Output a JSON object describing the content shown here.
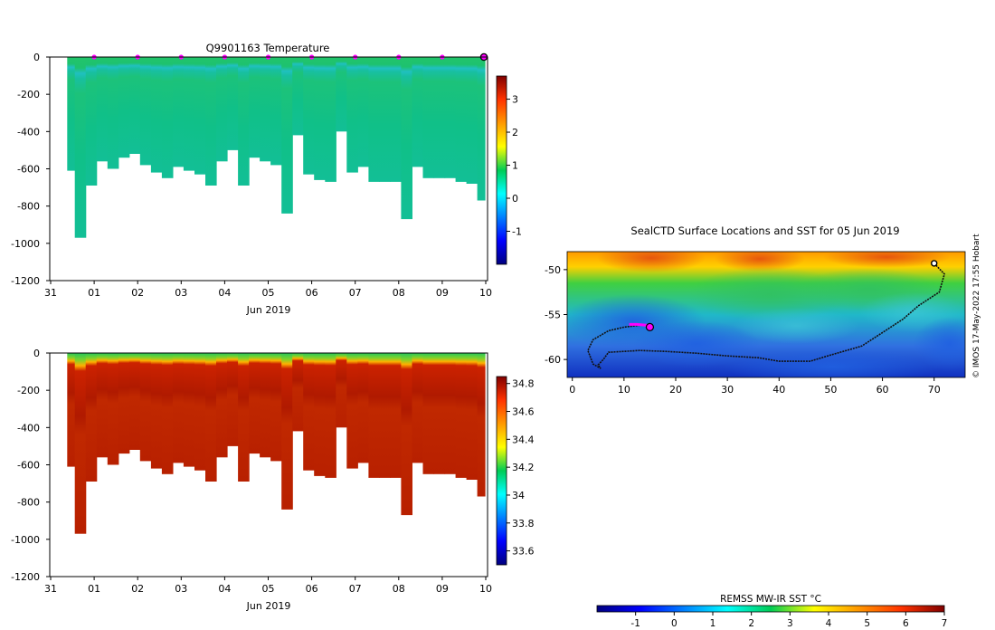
{
  "chart_data": [
    {
      "type": "heatmap",
      "id": "temperature",
      "title": "Q9901163  Temperature",
      "xlabel": "Jun 2019",
      "ylabel": "",
      "x_ticks": [
        "31",
        "01",
        "02",
        "03",
        "04",
        "05",
        "06",
        "07",
        "08",
        "09",
        "10"
      ],
      "xlim": [
        0,
        10
      ],
      "y_ticks": [
        0,
        -200,
        -400,
        -600,
        -800,
        -1000,
        -1200
      ],
      "ylim": [
        -1200,
        0
      ],
      "profile_days": [
        0.43,
        0.68,
        0.93,
        1.18,
        1.43,
        1.68,
        1.93,
        2.18,
        2.43,
        2.68,
        2.93,
        3.18,
        3.43,
        3.68,
        3.93,
        4.18,
        4.43,
        4.68,
        4.93,
        5.18,
        5.43,
        5.68,
        5.93,
        6.18,
        6.43,
        6.68,
        6.93,
        7.18,
        7.43,
        7.68,
        7.93,
        8.18,
        8.43,
        8.68,
        8.93,
        9.18,
        9.43,
        9.68,
        9.93
      ],
      "profile_max_depth": [
        610,
        970,
        690,
        560,
        600,
        540,
        520,
        580,
        620,
        650,
        590,
        610,
        630,
        690,
        560,
        500,
        690,
        540,
        560,
        580,
        840,
        420,
        630,
        660,
        670,
        400,
        620,
        590,
        670,
        670,
        670,
        870,
        590,
        650,
        650,
        650,
        670,
        680,
        770
      ],
      "surface_marker_days": [
        1,
        2,
        3,
        4,
        5,
        6,
        7,
        8,
        9
      ],
      "current_marker_day": 10,
      "colorbar": {
        "ticks": [
          3,
          2,
          1,
          0,
          -1
        ],
        "range": [
          -2,
          3.7
        ],
        "palette": "jet"
      }
    },
    {
      "type": "heatmap",
      "id": "salinity",
      "title": "",
      "xlabel": "Jun 2019",
      "x_ticks": [
        "31",
        "01",
        "02",
        "03",
        "04",
        "05",
        "06",
        "07",
        "08",
        "09",
        "10"
      ],
      "xlim": [
        0,
        10
      ],
      "y_ticks": [
        0,
        -200,
        -400,
        -600,
        -800,
        -1000,
        -1200
      ],
      "ylim": [
        -1200,
        0
      ],
      "colorbar": {
        "ticks": [
          34.8,
          34.6,
          34.4,
          34.2,
          34,
          33.8,
          33.6
        ],
        "range": [
          33.5,
          34.85
        ],
        "palette": "jet"
      }
    },
    {
      "type": "heatmap",
      "id": "sst-map",
      "title": "SealCTD Surface Locations and SST for 05 Jun 2019",
      "x_ticks": [
        0,
        10,
        20,
        30,
        40,
        50,
        60,
        70
      ],
      "xlim": [
        -1,
        76
      ],
      "y_ticks": [
        -50,
        -55,
        -60
      ],
      "ylim": [
        -62,
        -48
      ],
      "credit": "© IMOS 17-May-2022 17:55 Hobart",
      "colorbar": {
        "label": "REMSS MW-IR SST °C",
        "ticks": [
          -1,
          0,
          1,
          2,
          3,
          4,
          5,
          6,
          7
        ],
        "range": [
          -2,
          7
        ],
        "palette": "jet"
      },
      "track": [
        [
          70,
          -49.3
        ],
        [
          72,
          -50.5
        ],
        [
          71,
          -52.5
        ],
        [
          67,
          -54
        ],
        [
          64,
          -55.5
        ],
        [
          60,
          -57
        ],
        [
          56,
          -58.5
        ],
        [
          50,
          -59.5
        ],
        [
          46,
          -60.2
        ],
        [
          40,
          -60.2
        ],
        [
          36,
          -59.8
        ],
        [
          30,
          -59.6
        ],
        [
          24,
          -59.3
        ],
        [
          18,
          -59.1
        ],
        [
          13,
          -59
        ],
        [
          7,
          -59.2
        ],
        [
          6,
          -60
        ],
        [
          5,
          -60.6
        ],
        [
          5.5,
          -61
        ],
        [
          4,
          -60.5
        ],
        [
          3,
          -59
        ],
        [
          4,
          -57.8
        ],
        [
          7,
          -56.8
        ],
        [
          10,
          -56.4
        ],
        [
          13,
          -56.2
        ]
      ],
      "recent_track": [
        [
          11,
          -56.1
        ],
        [
          12.5,
          -56.1
        ],
        [
          14.5,
          -56.2
        ]
      ],
      "current_position": [
        15,
        -56.4
      ],
      "start_position": [
        70,
        -49.3
      ]
    }
  ]
}
